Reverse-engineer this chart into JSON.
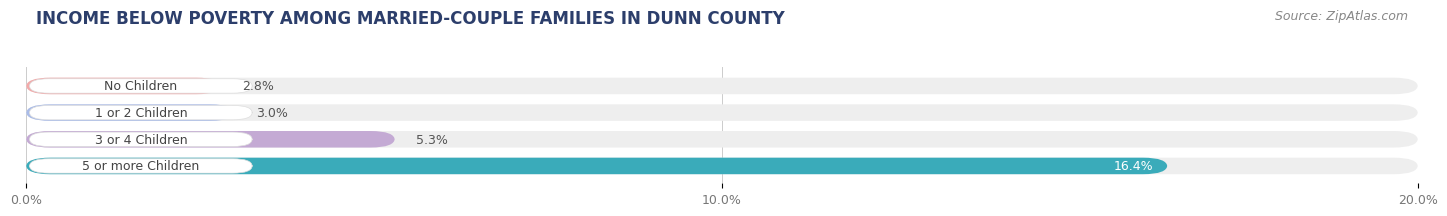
{
  "title": "INCOME BELOW POVERTY AMONG MARRIED-COUPLE FAMILIES IN DUNN COUNTY",
  "source": "Source: ZipAtlas.com",
  "categories": [
    "No Children",
    "1 or 2 Children",
    "3 or 4 Children",
    "5 or more Children"
  ],
  "values": [
    2.8,
    3.0,
    5.3,
    16.4
  ],
  "bar_colors": [
    "#f2aaaa",
    "#aabce8",
    "#c4aad4",
    "#3aabba"
  ],
  "value_label_colors": [
    "#555555",
    "#555555",
    "#555555",
    "#ffffff"
  ],
  "xlim": [
    0,
    20.0
  ],
  "xticks": [
    0.0,
    10.0,
    20.0
  ],
  "xticklabels": [
    "0.0%",
    "10.0%",
    "20.0%"
  ],
  "background_color": "#ffffff",
  "bar_background_color": "#eeeeee",
  "title_fontsize": 12,
  "source_fontsize": 9,
  "label_fontsize": 9,
  "tick_fontsize": 9,
  "cat_fontsize": 9,
  "bar_height": 0.62,
  "value_labels": [
    "2.8%",
    "3.0%",
    "5.3%",
    "16.4%"
  ],
  "grid_color": "#cccccc",
  "title_color": "#2c3e6b",
  "cat_label_color": "#444444"
}
